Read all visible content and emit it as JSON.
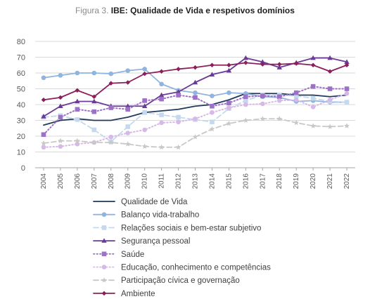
{
  "title_prefix": "Figura 3.",
  "title_main": "IBE: Qualidade de Vida e respetivos domínios",
  "chart_data": {
    "type": "line",
    "title": "IBE: Qualidade de Vida e respetivos domínios",
    "x": [
      "2004",
      "2005",
      "2006",
      "2007",
      "2008",
      "2009",
      "2010",
      "2011",
      "2012",
      "2013",
      "2014",
      "2015",
      "2016",
      "2017",
      "2018",
      "2019",
      "2020",
      "2021",
      "2022"
    ],
    "ylim": [
      0,
      80
    ],
    "yticks": [
      0,
      10,
      20,
      30,
      40,
      50,
      60,
      70,
      80
    ],
    "grid": "horizontal",
    "legend_position": "bottom",
    "series": [
      {
        "name": "Qualidade de Vida",
        "color": "#1f3a5a",
        "style": "solid",
        "marker": "none",
        "values": [
          27,
          30,
          31,
          30,
          30,
          32,
          35,
          36,
          37,
          39,
          40,
          43,
          47,
          47,
          47,
          46,
          46,
          45,
          46
        ]
      },
      {
        "name": "Balanço vida-trabalho",
        "color": "#8fb4dd",
        "style": "solid",
        "marker": "circle",
        "values": [
          57,
          58.5,
          60,
          60,
          59.5,
          61.5,
          62.5,
          53,
          49,
          47.5,
          45.5,
          47.5,
          47,
          45,
          44.5,
          42,
          42.5,
          41.5,
          41.5
        ]
      },
      {
        "name": "Relações sociais e bem-estar subjetivo",
        "color": "#c5d9ee",
        "style": "dash",
        "marker": "square",
        "values": [
          32,
          33,
          30.5,
          24,
          16.5,
          26,
          35,
          33.5,
          32,
          30.5,
          29,
          37.5,
          42.5,
          46,
          46,
          45.5,
          44,
          42,
          41.5
        ]
      },
      {
        "name": "Segurança pessoal",
        "color": "#6b3a96",
        "style": "solid",
        "marker": "triangle",
        "values": [
          32.5,
          39,
          42,
          42,
          39,
          39,
          39,
          46,
          48,
          54,
          59,
          61.5,
          69.5,
          67,
          63.5,
          66.5,
          69.5,
          69.5,
          67
        ]
      },
      {
        "name": "Saúde",
        "color": "#9b72c6",
        "style": "dot",
        "marker": "square",
        "values": [
          21,
          32,
          37,
          35.5,
          38,
          37,
          42.5,
          43.5,
          46,
          44.5,
          39,
          41,
          45,
          45.5,
          45,
          47.5,
          51.5,
          50,
          50
        ]
      },
      {
        "name": "Educação, conhecimento e competências",
        "color": "#d7b9e8",
        "style": "dot",
        "marker": "circle",
        "values": [
          13,
          13.5,
          15,
          16,
          19.5,
          22,
          24,
          28.5,
          29,
          31,
          35,
          38,
          40,
          40.5,
          42.5,
          43,
          38.5,
          43,
          47
        ]
      },
      {
        "name": "Participação cívica e governação",
        "color": "#c8c8c8",
        "style": "dash",
        "marker": "star",
        "values": [
          15.5,
          17,
          17,
          16,
          16,
          15,
          13.5,
          13,
          13,
          19.5,
          24.5,
          28,
          30,
          31,
          31,
          28.5,
          26.5,
          26,
          26.5
        ]
      },
      {
        "name": "Ambiente",
        "color": "#8b1f5b",
        "style": "solid",
        "marker": "diamond",
        "values": [
          43,
          44.5,
          49,
          45,
          53.5,
          54,
          59.5,
          61,
          62.5,
          63.5,
          65,
          65,
          66.5,
          65.5,
          65.5,
          66,
          65,
          61,
          65
        ]
      }
    ]
  }
}
